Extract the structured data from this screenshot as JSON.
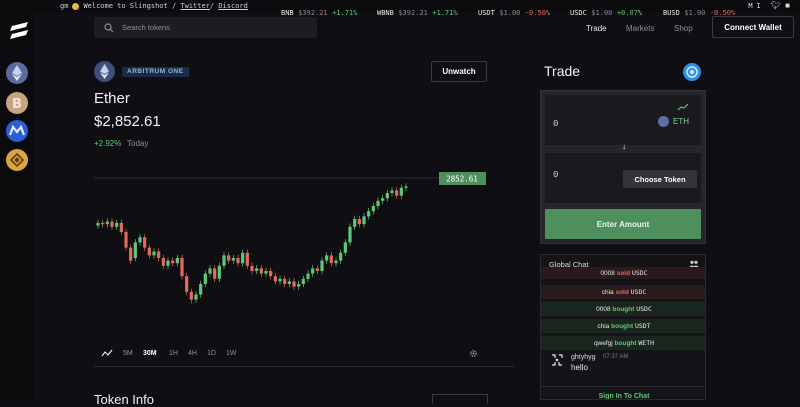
{
  "ticker": {
    "greeting": "gm",
    "welcome": "Welcome to Slingshot",
    "sep1": "/",
    "twitter": "Twitter",
    "sep2": "/",
    "discord": "Discord",
    "items": [
      {
        "sym": "BNB",
        "price": "$392.21",
        "change": "+1.71%",
        "dir": "up"
      },
      {
        "sym": "WBNB",
        "price": "$392.21",
        "change": "+1.71%",
        "dir": "up"
      },
      {
        "sym": "USDT",
        "price": "$1.00",
        "change": "-0.50%",
        "dir": "dn"
      },
      {
        "sym": "USDC",
        "price": "$1.00",
        "change": "+0.07%",
        "dir": "up"
      },
      {
        "sym": "BUSD",
        "price": "$1.00",
        "change": "-0.50%",
        "dir": "dn"
      }
    ],
    "extra": "MI"
  },
  "sidebar": {
    "coins": [
      {
        "icon": "ethereum-icon",
        "color": "#5c6a9e"
      },
      {
        "icon": "bitcoin-icon",
        "color": "#c8a582"
      },
      {
        "icon": "polygon-icon",
        "color": "#2b5fd9"
      },
      {
        "icon": "bnb-icon",
        "color": "#d9a441"
      }
    ]
  },
  "header": {
    "search_placeholder": "Search tokens",
    "nav": [
      "Trade",
      "Markets",
      "Shop"
    ],
    "active_nav": "Trade",
    "connect_label": "Connect Wallet"
  },
  "token": {
    "network": "ARBITRUM ONE",
    "watch_label": "Unwatch",
    "name": "Ether",
    "price": "$2,852.61",
    "change": "+2.92%",
    "period": "Today"
  },
  "timeframes": [
    "5M",
    "30M",
    "1H",
    "4H",
    "1D",
    "1W"
  ],
  "active_timeframe": "30M",
  "chart_data": {
    "type": "candlestick",
    "last_price_label": "2852.61",
    "colors": {
      "up": "#5fc777",
      "down": "#e06b5e"
    },
    "candles": [
      [
        0.35,
        0.33
      ],
      [
        0.33,
        0.34
      ],
      [
        0.34,
        0.32
      ],
      [
        0.32,
        0.36
      ],
      [
        0.36,
        0.33
      ],
      [
        0.33,
        0.4
      ],
      [
        0.4,
        0.52
      ],
      [
        0.52,
        0.62
      ],
      [
        0.6,
        0.48
      ],
      [
        0.48,
        0.44
      ],
      [
        0.44,
        0.52
      ],
      [
        0.52,
        0.58
      ],
      [
        0.58,
        0.55
      ],
      [
        0.55,
        0.6
      ],
      [
        0.6,
        0.66
      ],
      [
        0.66,
        0.62
      ],
      [
        0.62,
        0.64
      ],
      [
        0.64,
        0.6
      ],
      [
        0.6,
        0.74
      ],
      [
        0.74,
        0.86
      ],
      [
        0.86,
        0.92
      ],
      [
        0.92,
        0.88
      ],
      [
        0.88,
        0.8
      ],
      [
        0.8,
        0.72
      ],
      [
        0.72,
        0.68
      ],
      [
        0.68,
        0.76
      ],
      [
        0.76,
        0.66
      ],
      [
        0.66,
        0.58
      ],
      [
        0.58,
        0.62
      ],
      [
        0.62,
        0.6
      ],
      [
        0.6,
        0.64
      ],
      [
        0.64,
        0.56
      ],
      [
        0.56,
        0.66
      ],
      [
        0.66,
        0.7
      ],
      [
        0.7,
        0.68
      ],
      [
        0.68,
        0.72
      ],
      [
        0.72,
        0.7
      ],
      [
        0.7,
        0.74
      ],
      [
        0.74,
        0.78
      ],
      [
        0.78,
        0.76
      ],
      [
        0.76,
        0.8
      ],
      [
        0.8,
        0.78
      ],
      [
        0.78,
        0.82
      ],
      [
        0.82,
        0.8
      ],
      [
        0.8,
        0.76
      ],
      [
        0.76,
        0.72
      ],
      [
        0.72,
        0.68
      ],
      [
        0.68,
        0.7
      ],
      [
        0.7,
        0.62
      ],
      [
        0.62,
        0.58
      ],
      [
        0.58,
        0.64
      ],
      [
        0.64,
        0.62
      ],
      [
        0.62,
        0.56
      ],
      [
        0.56,
        0.48
      ],
      [
        0.48,
        0.36
      ],
      [
        0.36,
        0.3
      ],
      [
        0.3,
        0.34
      ],
      [
        0.34,
        0.28
      ],
      [
        0.28,
        0.24
      ],
      [
        0.24,
        0.2
      ],
      [
        0.2,
        0.16
      ],
      [
        0.16,
        0.14
      ],
      [
        0.14,
        0.1
      ],
      [
        0.1,
        0.08
      ],
      [
        0.08,
        0.12
      ],
      [
        0.12,
        0.06
      ],
      [
        0.06,
        0.05
      ]
    ]
  },
  "trade": {
    "title": "Trade",
    "from_amount": "0",
    "from_token": "ETH",
    "to_amount": "0",
    "choose_label": "Choose Token",
    "submit_label": "Enter Amount"
  },
  "chat": {
    "title": "Global Chat",
    "trades": [
      {
        "user": "0008",
        "action": "sold",
        "token": "USDC",
        "side": "sell"
      },
      {
        "user": "chia",
        "action": "sold",
        "token": "USDC",
        "side": "sell"
      },
      {
        "user": "0008",
        "action": "bought",
        "token": "USDC",
        "side": "buy"
      },
      {
        "user": "chia",
        "action": "bought",
        "token": "USDT",
        "side": "buy"
      },
      {
        "user": "qwefgj",
        "action": "bought",
        "token": "WETH",
        "side": "buy"
      }
    ],
    "message": {
      "user": "ghtyhyg",
      "time": "07:37 AM",
      "text": "hello"
    },
    "signin_label": "Sign In To Chat"
  },
  "section_title": "Token Info"
}
